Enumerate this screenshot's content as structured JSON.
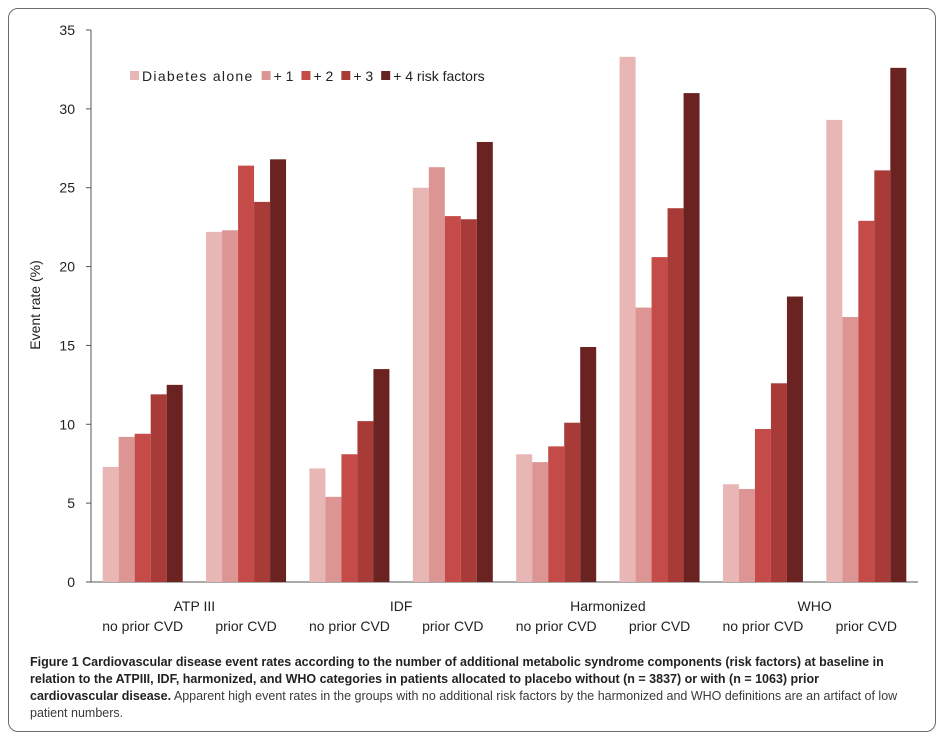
{
  "chart_data": {
    "type": "bar",
    "ylabel": "Event rate (%)",
    "ylim": [
      0,
      35
    ],
    "yticks": [
      0,
      5,
      10,
      15,
      20,
      25,
      30,
      35
    ],
    "grid": false,
    "legend_position": "top-left",
    "groups": [
      {
        "label": "ATP III",
        "subcategories": [
          "no prior CVD",
          "prior CVD"
        ]
      },
      {
        "label": "IDF",
        "subcategories": [
          "no prior CVD",
          "prior CVD"
        ]
      },
      {
        "label": "Harmonized",
        "subcategories": [
          "no prior CVD",
          "prior CVD"
        ]
      },
      {
        "label": "WHO",
        "subcategories": [
          "no prior CVD",
          "prior CVD"
        ]
      }
    ],
    "categories": [
      "ATP III no prior CVD",
      "ATP III prior CVD",
      "IDF no prior CVD",
      "IDF prior CVD",
      "Harmonized no prior CVD",
      "Harmonized prior CVD",
      "WHO no prior CVD",
      "WHO prior CVD"
    ],
    "series": [
      {
        "name": "Diabetes alone",
        "color": "#e8b7b5",
        "values": [
          7.3,
          22.2,
          7.2,
          25.0,
          8.1,
          33.3,
          6.2,
          29.3
        ]
      },
      {
        "name": "+ 1",
        "color": "#dc9592",
        "values": [
          9.2,
          22.3,
          5.4,
          26.3,
          7.6,
          17.4,
          5.9,
          16.8
        ]
      },
      {
        "name": "+ 2",
        "color": "#c54b48",
        "values": [
          9.4,
          26.4,
          8.1,
          23.2,
          8.6,
          20.6,
          9.7,
          22.9
        ]
      },
      {
        "name": "+ 3",
        "color": "#a83b38",
        "values": [
          11.9,
          24.1,
          10.2,
          23.0,
          10.1,
          23.7,
          12.6,
          26.1
        ]
      },
      {
        "name": "+ 4 risk factors",
        "color": "#6b2322",
        "values": [
          12.5,
          26.8,
          13.5,
          27.9,
          14.9,
          31.0,
          18.1,
          32.6
        ]
      }
    ]
  },
  "caption": {
    "lead": "Figure 1 Cardiovascular disease event rates according to the number of additional metabolic syndrome components (risk factors) at baseline in relation to the ATPIII, IDF, harmonized, and WHO categories in patients allocated to placebo without (n = 3837) or with (n = 1063) prior cardiovascular disease.",
    "rest": "Apparent high event rates in the groups with no additional risk factors by the harmonized and WHO definitions are an artifact of low patient numbers."
  }
}
